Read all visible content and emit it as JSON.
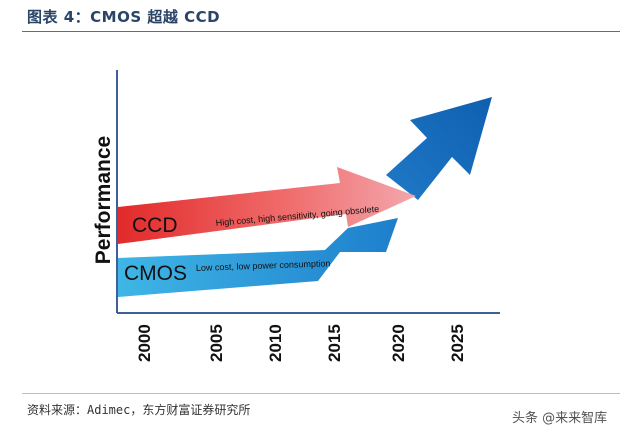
{
  "figure": {
    "title": "图表 4：CMOS 超越 CCD",
    "source": "资料来源：Adimec，东方财富证券研究所",
    "watermark": "头条 @来来智库"
  },
  "diagram": {
    "y_axis_label": "Performance",
    "x_ticks": [
      "2000",
      "2005",
      "2010",
      "2015",
      "2020",
      "2025"
    ],
    "ccd": {
      "label": "CCD",
      "description": "High cost, high sensitivity, going obsolete"
    },
    "cmos": {
      "label": "CMOS",
      "description": "Low cost, low power consumption"
    },
    "colors": {
      "ccd": "#e03c3c",
      "cmos": "#3aaee0",
      "future": "#1d6fbe",
      "axis": "#3e5f9a"
    }
  }
}
